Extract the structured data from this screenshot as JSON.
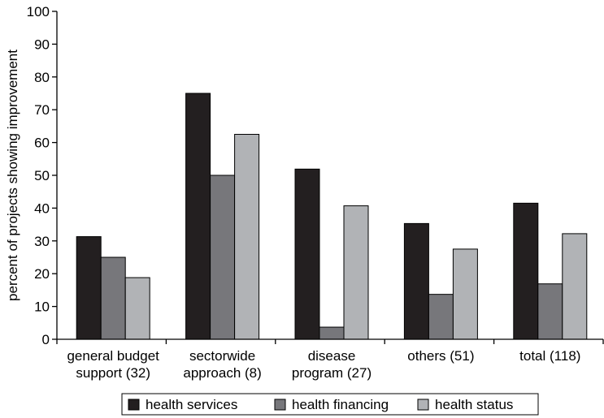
{
  "chart_data": {
    "type": "bar",
    "ylabel": "percent of projects showing improvement",
    "ylim": [
      0,
      100
    ],
    "yticks": [
      0,
      10,
      20,
      30,
      40,
      50,
      60,
      70,
      80,
      90,
      100
    ],
    "categories": [
      [
        "general budget",
        "support (32)"
      ],
      [
        "sectorwide",
        "approach (8)"
      ],
      [
        "disease",
        "program (27)"
      ],
      [
        "others (51)"
      ],
      [
        "total (118)"
      ]
    ],
    "series": [
      {
        "name": "health services",
        "color": "#231f20",
        "values": [
          31.3,
          75,
          51.9,
          35.3,
          41.5
        ]
      },
      {
        "name": "health financing",
        "color": "#77777b",
        "values": [
          25,
          50,
          3.7,
          13.7,
          16.9
        ]
      },
      {
        "name": "health status",
        "color": "#b1b3b6",
        "values": [
          18.8,
          62.5,
          40.7,
          27.5,
          32.2
        ]
      }
    ],
    "legend_position": "bottom",
    "grid": false
  }
}
